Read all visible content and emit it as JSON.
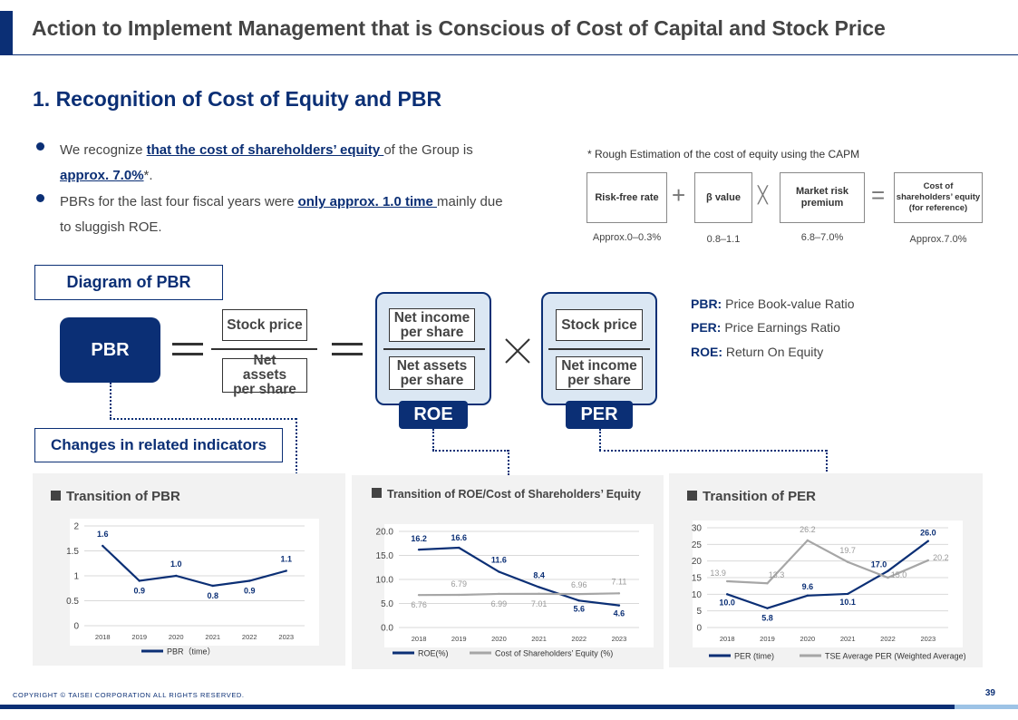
{
  "page": {
    "title": "Action to Implement Management that is Conscious of Cost of Capital and Stock Price",
    "section": "1. Recognition of Cost of Equity and PBR",
    "page_number": "39",
    "copyright": "COPYRIGHT © TAISEI CORPORATION ALL RIGHTS RESERVED."
  },
  "bullets": [
    {
      "pre": "We recognize ",
      "hl1": "that the cost of shareholders’ equity ",
      "mid": "of the Group is ",
      "hl2": "approx. 7.0%",
      "post": "*."
    },
    {
      "pre": "PBRs for the last four fiscal years were ",
      "hl1": "only approx. 1.0 time ",
      "post": "mainly due to sluggish ROE."
    }
  ],
  "capm": {
    "note": "* Rough Estimation of the cost of equity using the CAPM",
    "items": [
      {
        "label": "Risk-free rate",
        "value": "Approx.0–0.3%"
      },
      {
        "label": "β value",
        "value": "0.8–1.1"
      },
      {
        "label": "Market risk premium",
        "value": "6.8–7.0%"
      },
      {
        "label": "Cost of shareholders’ equity (for reference)",
        "value": "Approx.7.0%"
      }
    ],
    "ops": [
      "+",
      "╳",
      "="
    ]
  },
  "diagram": {
    "label": "Diagram of PBR",
    "pbr": "PBR",
    "stock_price": "Stock price",
    "nav_per_share": "Net assets per share",
    "ni_per_share": "Net income per share",
    "roe_tag": "ROE",
    "per_tag": "PER",
    "changes_label": "Changes in related indicators"
  },
  "definitions": [
    {
      "abbr": "PBR:",
      "text": " Price Book-value Ratio"
    },
    {
      "abbr": "PER:",
      "text": " Price Earnings Ratio"
    },
    {
      "abbr": "ROE:",
      "text": " Return On Equity"
    }
  ],
  "colors": {
    "navy": "#0b2f75",
    "light_blue": "#dbe7f3",
    "gray_series": "#a6a6a6",
    "panel_bg": "#f2f2f2"
  },
  "chart_data": [
    {
      "type": "line",
      "title": "Transition of PBR",
      "x": [
        "2018",
        "2019",
        "2020",
        "2021",
        "2022",
        "2023"
      ],
      "yticks": [
        "0",
        "0.5",
        "1",
        "1.5",
        "2"
      ],
      "ylim": [
        0,
        2
      ],
      "series": [
        {
          "name": "PBR（time）",
          "values": [
            1.6,
            0.9,
            1.0,
            0.8,
            0.9,
            1.1
          ],
          "labels": [
            "1.6",
            "0.9",
            "1.0",
            "0.8",
            "0.9",
            "1.1"
          ],
          "color": "#0b2f75"
        }
      ],
      "legend": "bottom"
    },
    {
      "type": "line",
      "title": "Transition of ROE/Cost of Shareholders’ Equity",
      "x": [
        "2018",
        "2019",
        "2020",
        "2021",
        "2022",
        "2023"
      ],
      "yticks": [
        "0.0",
        "5.0",
        "10.0",
        "15.0",
        "20.0"
      ],
      "ylim": [
        0,
        20
      ],
      "series": [
        {
          "name": "ROE(%)",
          "values": [
            16.2,
            16.6,
            11.6,
            8.4,
            5.6,
            4.6
          ],
          "labels": [
            "16.2",
            "16.6",
            "11.6",
            "8.4",
            "5.6",
            "4.6"
          ],
          "color": "#0b2f75"
        },
        {
          "name": "Cost of Shareholders’ Equity (%)",
          "values": [
            6.76,
            6.79,
            6.99,
            7.01,
            6.96,
            7.11
          ],
          "labels": [
            "6.76",
            "6.79",
            "6.99",
            "7.01",
            "6.96",
            "7.11"
          ],
          "color": "#a6a6a6"
        }
      ],
      "legend": "bottom"
    },
    {
      "type": "line",
      "title": "Transition of PER",
      "x": [
        "2018",
        "2019",
        "2020",
        "2021",
        "2022",
        "2023"
      ],
      "yticks": [
        "0",
        "5",
        "10",
        "15",
        "20",
        "25",
        "30"
      ],
      "ylim": [
        0,
        30
      ],
      "series": [
        {
          "name": "PER (time)",
          "values": [
            10.0,
            5.8,
            9.6,
            10.1,
            17.0,
            26.0
          ],
          "labels": [
            "10.0",
            "5.8",
            "9.6",
            "10.1",
            "17.0",
            "26.0"
          ],
          "color": "#0b2f75"
        },
        {
          "name": "TSE Average PER (Weighted Average)",
          "values": [
            13.9,
            13.3,
            26.2,
            19.7,
            15.0,
            20.2
          ],
          "labels": [
            "13.9",
            "13.3",
            "26.2",
            "19.7",
            "15.0",
            "20.2"
          ],
          "color": "#a6a6a6"
        }
      ],
      "legend": "bottom"
    }
  ]
}
